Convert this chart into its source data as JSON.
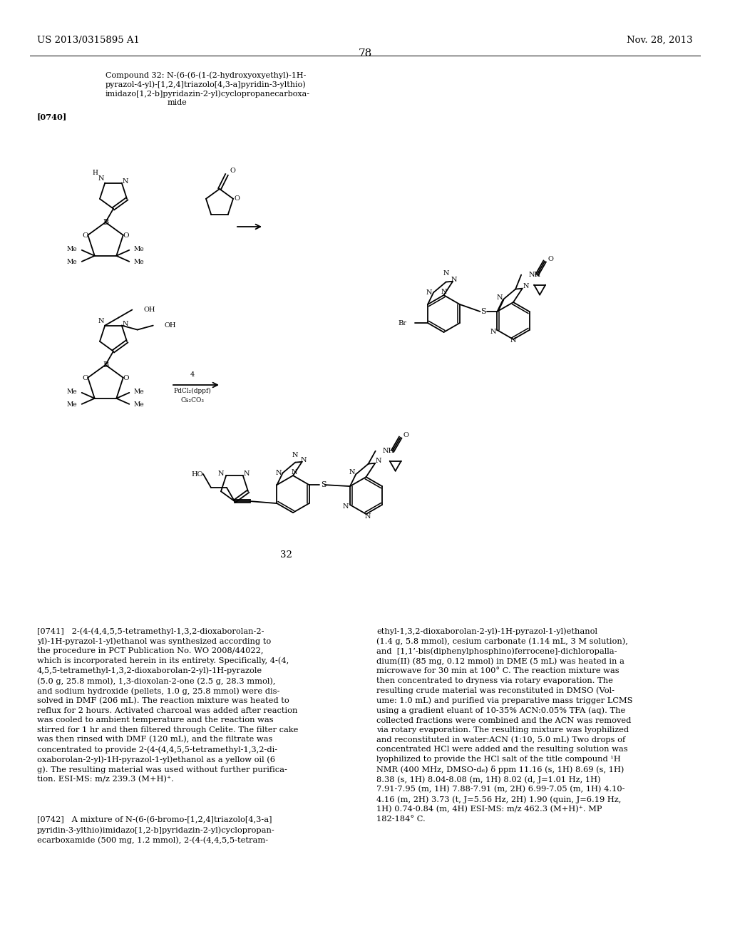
{
  "page_header_left": "US 2013/0315895 A1",
  "page_header_right": "Nov. 28, 2013",
  "page_number": "78",
  "compound_label_line1": "Compound 32: N-(6-(6-(1-(2-hydroxyoxyethyl)-1H-",
  "compound_label_line2": "pyrazol-4-yl)-[1,2,4]triazolo[4,3-a]pyridin-3-ylthio)",
  "compound_label_line3": "imidazo[1,2-b]pyridazin-2-yl)cyclopropanecarboxa-",
  "compound_label_line4": "mide",
  "paragraph_label": "[0740]",
  "compound_number": "32",
  "reaction_num": "4",
  "reaction_cat1": "PdCl₂(dppf)",
  "reaction_cat2": "Cs₂CO₃",
  "para_0741": "[0741]   2-(4-(4,4,5,5-tetramethyl-1,3,2-dioxaborolan-2-\nyl)-1H-pyrazol-1-yl)ethanol was synthesized according to\nthe procedure in PCT Publication No. WO 2008/44022,\nwhich is incorporated herein in its entirety. Specifically, 4-(4,\n4,5,5-tetramethyl-1,3,2-dioxaborolan-2-yl)-1H-pyrazole\n(5.0 g, 25.8 mmol), 1,3-dioxolan-2-one (2.5 g, 28.3 mmol),\nand sodium hydroxide (pellets, 1.0 g, 25.8 mmol) were dis-\nsolved in DMF (206 mL). The reaction mixture was heated to\nreflux for 2 hours. Activated charcoal was added after reaction\nwas cooled to ambient temperature and the reaction was\nstirred for 1 hr and then filtered through Celite. The filter cake\nwas then rinsed with DMF (120 mL), and the filtrate was\nconcentrated to provide 2-(4-(4,4,5,5-tetramethyl-1,3,2-di-\noxaborolan-2-yl)-1H-pyrazol-1-yl)ethanol as a yellow oil (6\ng). The resulting material was used without further purifica-\ntion. ESI-MS: m/z 239.3 (M+H)⁺.",
  "para_0742": "[0742]   A mixture of N-(6-(6-bromo-[1,2,4]triazolo[4,3-a]\npyridin-3-ylthio)imidazo[1,2-b]pyridazin-2-yl)cyclopropan-\necarboxamide (500 mg, 1.2 mmol), 2-(4-(4,4,5,5-tetram-",
  "para_right": "ethyl-1,3,2-dioxaborolan-2-yl)-1H-pyrazol-1-yl)ethanol\n(1.4 g, 5.8 mmol), cesium carbonate (1.14 mL, 3 M solution),\nand  [1,1’-bis(diphenylphosphino)ferrocene]-dichloropalla-\ndium(II) (85 mg, 0.12 mmol) in DME (5 mL) was heated in a\nmicrowave for 30 min at 100° C. The reaction mixture was\nthen concentrated to dryness via rotary evaporation. The\nresulting crude material was reconstituted in DMSO (Vol-\nume: 1.0 mL) and purified via preparative mass trigger LCMS\nusing a gradient eluant of 10-35% ACN:0.05% TFA (aq). The\ncollected fractions were combined and the ACN was removed\nvia rotary evaporation. The resulting mixture was lyophilized\nand reconstituted in water:ACN (1:10, 5.0 mL) Two drops of\nconcentrated HCl were added and the resulting solution was\nlyophilized to provide the HCl salt of the title compound ¹H\nNMR (400 MHz, DMSO-d₆) δ ppm 11.16 (s, 1H) 8.69 (s, 1H)\n8.38 (s, 1H) 8.04-8.08 (m, 1H) 8.02 (d, J=1.01 Hz, 1H)\n7.91-7.95 (m, 1H) 7.88-7.91 (m, 2H) 6.99-7.05 (m, 1H) 4.10-\n4.16 (m, 2H) 3.73 (t, J=5.56 Hz, 2H) 1.90 (quin, J=6.19 Hz,\n1H) 0.74-0.84 (m, 4H) ESI-MS: m/z 462.3 (M+H)⁺. MP\n182-184° C.",
  "bg_color": "#ffffff",
  "text_color": "#000000",
  "bond_lw": 1.3,
  "font_size_header": 9.5,
  "font_size_body": 8.2,
  "font_size_chem": 7.0,
  "font_size_page_num": 11
}
